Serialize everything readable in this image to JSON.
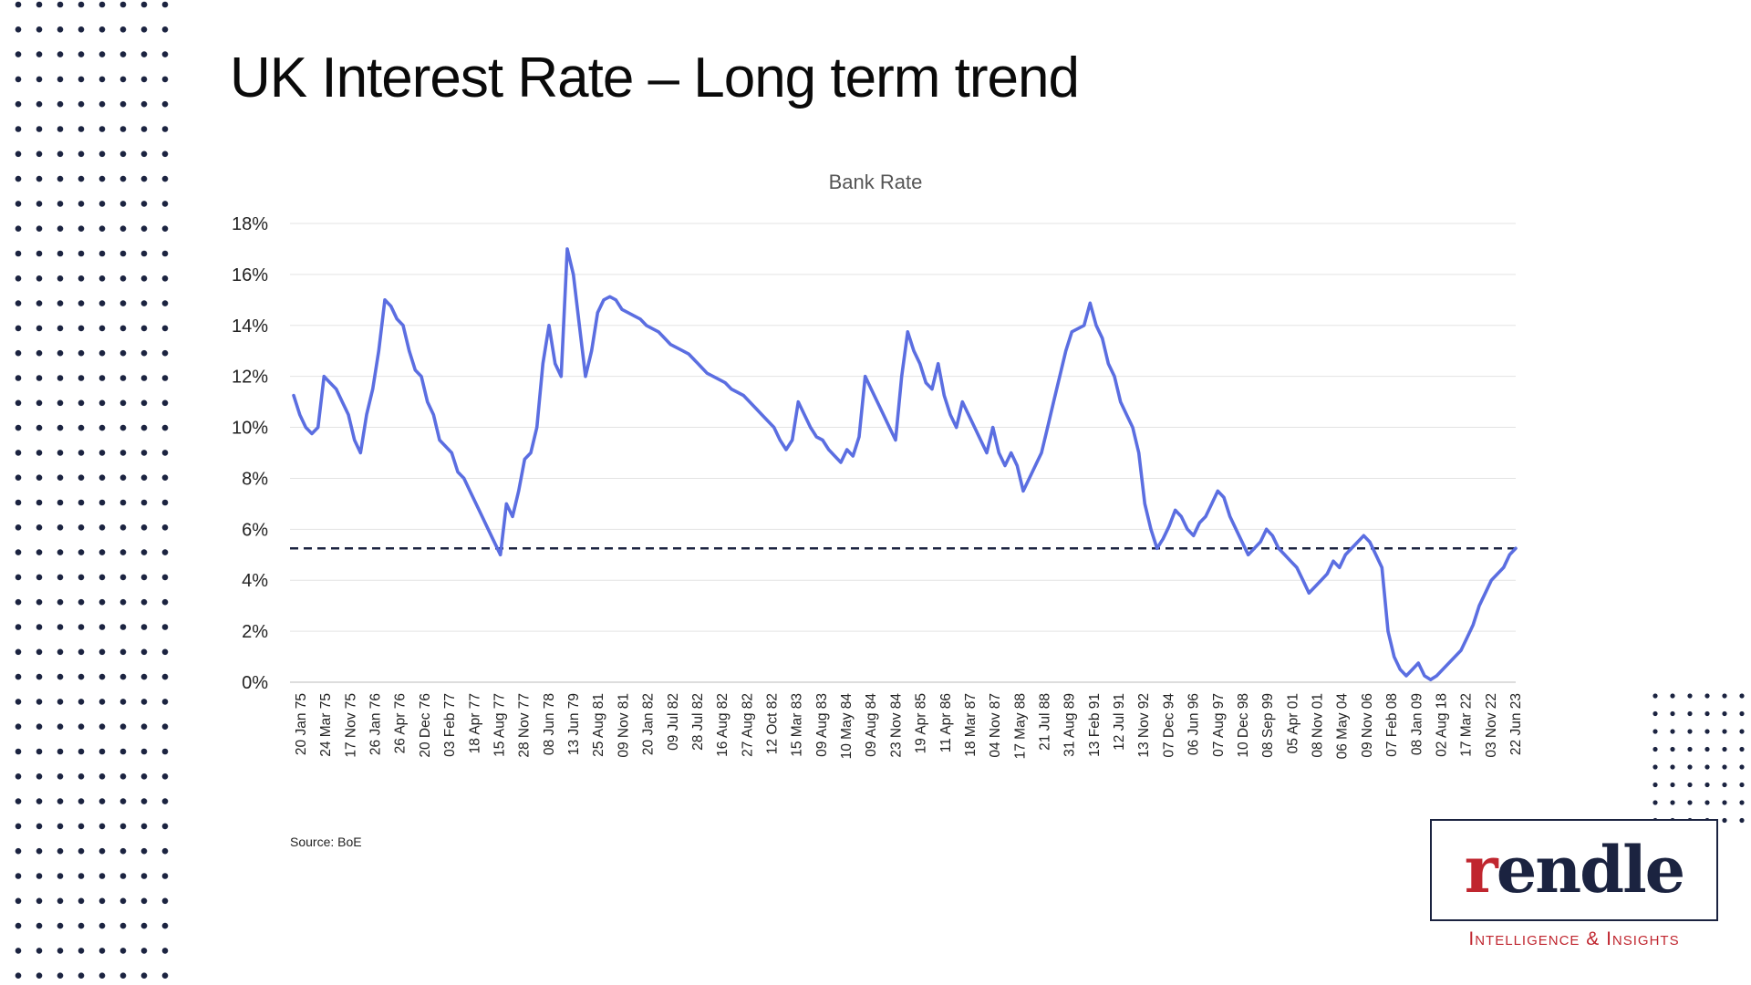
{
  "page": {
    "title": "UK Interest Rate – Long term trend",
    "source": "Source: BoE"
  },
  "logo": {
    "word": "rendle",
    "tagline": "Intelligence & Insights",
    "brand_navy": "#1b2340",
    "brand_red": "#c0262f"
  },
  "colors": {
    "line": "#5b6ee1",
    "reference_line": "#1b2340",
    "dots": "#1b2340",
    "grid": "#e3e3e3"
  },
  "chart_data": {
    "type": "line",
    "title": "Bank Rate",
    "xlabel": "",
    "ylabel": "",
    "ylim": [
      0,
      18
    ],
    "y_ticks": [
      "0%",
      "2%",
      "4%",
      "6%",
      "8%",
      "10%",
      "12%",
      "14%",
      "16%",
      "18%"
    ],
    "y_tick_values": [
      0,
      2,
      4,
      6,
      8,
      10,
      12,
      14,
      16,
      18
    ],
    "grid": true,
    "legend": "none",
    "x_tick_labels": [
      "20 Jan 75",
      "24 Mar 75",
      "17 Nov 75",
      "26 Jan 76",
      "26 Apr 76",
      "20 Dec 76",
      "03 Feb 77",
      "18 Apr 77",
      "15 Aug 77",
      "28 Nov 77",
      "08 Jun 78",
      "13 Jun 79",
      "25 Aug 81",
      "09 Nov 81",
      "20 Jan 82",
      "09 Jul 82",
      "28 Jul 82",
      "16 Aug 82",
      "27 Aug 82",
      "12 Oct 82",
      "15 Mar 83",
      "09 Aug 83",
      "10 May 84",
      "09 Aug 84",
      "23 Nov 84",
      "19 Apr 85",
      "11 Apr 86",
      "18 Mar 87",
      "04 Nov 87",
      "17 May 88",
      "21 Jul 88",
      "31 Aug 89",
      "13 Feb 91",
      "12 Jul 91",
      "13 Nov 92",
      "07 Dec 94",
      "06 Jun 96",
      "07 Aug 97",
      "10 Dec 98",
      "08 Sep 99",
      "05 Apr 01",
      "08 Nov 01",
      "06 May 04",
      "09 Nov 06",
      "07 Feb 08",
      "08 Jan 09",
      "02 Aug 18",
      "17 Mar 22",
      "03 Nov 22",
      "22 Jun 23"
    ],
    "reference_line": {
      "y": 5.25,
      "style": "dashed"
    },
    "series": [
      {
        "values": [
          11.25,
          10.5,
          10,
          9.75,
          10,
          12,
          11.75,
          11.5,
          11,
          10.5,
          9.5,
          9,
          10.5,
          11.5,
          13,
          15,
          14.75,
          14.25,
          14,
          13,
          12.25,
          12,
          11,
          10.5,
          9.5,
          9.25,
          9,
          8.25,
          8,
          7.5,
          7,
          6.5,
          6,
          5.5,
          5,
          7,
          6.5,
          7.5,
          8.75,
          9,
          10,
          12.5,
          14,
          12.5,
          12,
          17,
          16,
          14,
          12,
          13,
          14.5,
          15,
          15.125,
          15,
          14.625,
          14.5,
          14.375,
          14.25,
          14,
          13.875,
          13.75,
          13.5,
          13.25,
          13.125,
          13,
          12.875,
          12.625,
          12.375,
          12.125,
          12,
          11.875,
          11.75,
          11.5,
          11.375,
          11.25,
          11,
          10.75,
          10.5,
          10.25,
          10,
          9.5,
          9.125,
          9.5,
          11,
          10.5,
          10,
          9.625,
          9.5,
          9.125,
          8.875,
          8.625,
          9.125,
          8.875,
          9.625,
          12,
          11.5,
          11,
          10.5,
          10,
          9.5,
          12,
          13.75,
          13,
          12.5,
          11.75,
          11.5,
          12.5,
          11.25,
          10.5,
          10,
          11,
          10.5,
          10,
          9.5,
          9,
          10,
          9,
          8.5,
          9,
          8.5,
          7.5,
          8,
          8.5,
          9,
          10,
          11,
          12,
          13,
          13.75,
          13.875,
          14,
          14.875,
          14,
          13.5,
          12.5,
          12,
          11,
          10.5,
          10,
          9,
          7,
          6,
          5.25,
          5.625,
          6.125,
          6.75,
          6.5,
          6,
          5.75,
          6.25,
          6.5,
          7,
          7.5,
          7.25,
          6.5,
          6,
          5.5,
          5,
          5.25,
          5.5,
          6,
          5.75,
          5.25,
          5,
          4.75,
          4.5,
          4,
          3.5,
          3.75,
          4,
          4.25,
          4.75,
          4.5,
          5,
          5.25,
          5.5,
          5.75,
          5.5,
          5,
          4.5,
          2,
          1,
          0.5,
          0.25,
          0.5,
          0.75,
          0.25,
          0.1,
          0.25,
          0.5,
          0.75,
          1,
          1.25,
          1.75,
          2.25,
          3,
          3.5,
          4,
          4.25,
          4.5,
          5,
          5.25
        ]
      }
    ]
  }
}
